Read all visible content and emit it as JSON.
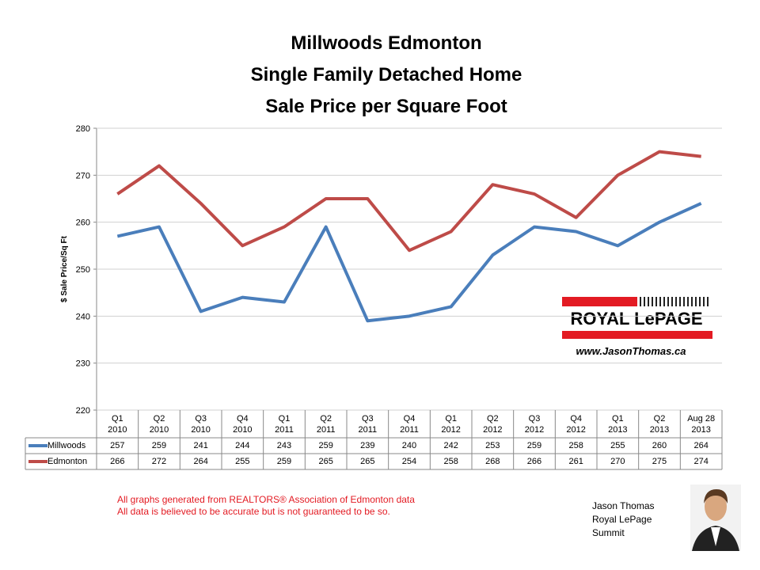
{
  "chart_data": {
    "type": "line",
    "title": [
      "Millwoods Edmonton",
      "Single Family Detached Home",
      "Sale Price per Square Foot"
    ],
    "y_label": "$ Sale Price/Sq Ft",
    "categories": [
      "Q1\n2010",
      "Q2\n2010",
      "Q3\n2010",
      "Q4\n2010",
      "Q1\n2011",
      "Q2\n2011",
      "Q3\n2011",
      "Q4\n2011",
      "Q1\n2012",
      "Q2\n2012",
      "Q3\n2012",
      "Q4\n2012",
      "Q1\n2013",
      "Q2\n2013",
      "Aug 28\n2013"
    ],
    "series": [
      {
        "name": "Millwoods",
        "color": "#4a7ebb",
        "values": [
          257,
          259,
          241,
          244,
          243,
          259,
          239,
          240,
          242,
          253,
          259,
          258,
          255,
          260,
          264
        ]
      },
      {
        "name": "Edmonton",
        "color": "#be4b48",
        "values": [
          266,
          272,
          264,
          255,
          259,
          265,
          265,
          254,
          258,
          268,
          266,
          261,
          270,
          275,
          274
        ]
      }
    ],
    "ylim": [
      220,
      280
    ],
    "yticks": [
      220,
      230,
      240,
      250,
      260,
      270,
      280
    ],
    "grid": true,
    "logo": {
      "brand": "ROYAL LePAGE",
      "url": "www.JasonThomas.ca"
    },
    "footnotes": [
      "All graphs generated from REALTORS® Association of Edmonton data",
      "All data is believed to be accurate but is not guaranteed to be so."
    ],
    "signature": [
      "Jason Thomas",
      "Royal LePage",
      "Summit"
    ]
  }
}
